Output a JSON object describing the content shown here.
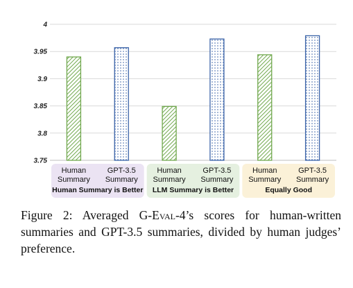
{
  "chart_data": {
    "type": "bar",
    "ylim": [
      3.75,
      4
    ],
    "yticks": [
      "3.75",
      "3.8",
      "3.85",
      "3.9",
      "3.95",
      "4"
    ],
    "grid": true,
    "groups": [
      {
        "label": "Human Summary is Better",
        "bg": "#ebe3f3",
        "bars": [
          {
            "label": [
              "Human",
              "Summary"
            ],
            "value": 3.94,
            "style": "hatch"
          },
          {
            "label": [
              "GPT-3.5",
              "Summary"
            ],
            "value": 3.957,
            "style": "dots"
          }
        ]
      },
      {
        "label": "LLM Summary is Better",
        "bg": "#e5f0e0",
        "bars": [
          {
            "label": [
              "Human",
              "Summary"
            ],
            "value": 3.849,
            "style": "hatch"
          },
          {
            "label": [
              "GPT-3.5",
              "Summary"
            ],
            "value": 3.973,
            "style": "dots"
          }
        ]
      },
      {
        "label": "Equally Good",
        "bg": "#fbf1d8",
        "bars": [
          {
            "label": [
              "Human",
              "Summary"
            ],
            "value": 3.944,
            "style": "hatch"
          },
          {
            "label": [
              "GPT-3.5",
              "Summary"
            ],
            "value": 3.979,
            "style": "dots"
          }
        ]
      }
    ],
    "colors": {
      "hatch": "#70a84d",
      "dots": "#3a63a8"
    }
  },
  "caption": {
    "prefix": "Figure 2:  Averaged G-",
    "smallcaps": "Eval",
    "suffix": "-4’s scores for human-written summaries and GPT-3.5 summaries, divided by human judges’ preference."
  }
}
